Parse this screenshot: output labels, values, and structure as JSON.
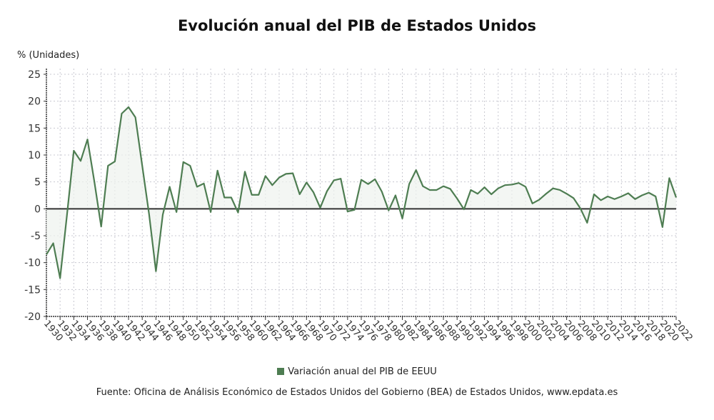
{
  "chart_data": {
    "type": "line",
    "title": "Evolución anual del PIB de Estados Unidos",
    "ylabel": "% (Unidades)",
    "ylim": [
      -20,
      25
    ],
    "yticks": [
      25,
      20,
      15,
      10,
      5,
      0,
      -5,
      -10,
      -15,
      -20
    ],
    "xlim": [
      1930,
      2022
    ],
    "grid": true,
    "legend_position": "bottom",
    "series": [
      {
        "name": "Variación anual del PIB de EEUU",
        "color": "#4e7d52",
        "x": [
          1930,
          1931,
          1932,
          1933,
          1934,
          1935,
          1936,
          1937,
          1938,
          1939,
          1940,
          1941,
          1942,
          1943,
          1944,
          1945,
          1946,
          1947,
          1948,
          1949,
          1950,
          1951,
          1952,
          1953,
          1954,
          1955,
          1956,
          1957,
          1958,
          1959,
          1960,
          1961,
          1962,
          1963,
          1964,
          1965,
          1966,
          1967,
          1968,
          1969,
          1970,
          1971,
          1972,
          1973,
          1974,
          1975,
          1976,
          1977,
          1978,
          1979,
          1980,
          1981,
          1982,
          1983,
          1984,
          1985,
          1986,
          1987,
          1988,
          1989,
          1990,
          1991,
          1992,
          1993,
          1994,
          1995,
          1996,
          1997,
          1998,
          1999,
          2000,
          2001,
          2002,
          2003,
          2004,
          2005,
          2006,
          2007,
          2008,
          2009,
          2010,
          2011,
          2012,
          2013,
          2014,
          2015,
          2016,
          2017,
          2018,
          2019,
          2020,
          2021,
          2022
        ],
        "values": [
          -8.5,
          -6.4,
          -12.9,
          -1.2,
          10.8,
          8.9,
          12.9,
          5.1,
          -3.3,
          8.0,
          8.8,
          17.7,
          18.9,
          17.0,
          8.0,
          -1.0,
          -11.6,
          -1.1,
          4.1,
          -0.6,
          8.7,
          8.0,
          4.1,
          4.7,
          -0.6,
          7.1,
          2.1,
          2.1,
          -0.7,
          6.9,
          2.6,
          2.6,
          6.1,
          4.4,
          5.8,
          6.5,
          6.6,
          2.7,
          4.9,
          3.1,
          0.2,
          3.3,
          5.3,
          5.6,
          -0.5,
          -0.2,
          5.4,
          4.6,
          5.5,
          3.2,
          -0.3,
          2.5,
          -1.8,
          4.6,
          7.2,
          4.2,
          3.5,
          3.5,
          4.2,
          3.7,
          1.9,
          -0.1,
          3.5,
          2.8,
          4.0,
          2.7,
          3.8,
          4.4,
          4.5,
          4.8,
          4.1,
          1.0,
          1.7,
          2.8,
          3.8,
          3.5,
          2.8,
          2.0,
          0.1,
          -2.6,
          2.7,
          1.6,
          2.3,
          1.8,
          2.3,
          2.9,
          1.8,
          2.5,
          3.0,
          2.3,
          -3.4,
          5.7,
          2.1
        ]
      }
    ],
    "xtick_labels": [
      "1930",
      "1932",
      "1934",
      "1936",
      "1938",
      "1940",
      "1942",
      "1944",
      "1946",
      "1948",
      "1950",
      "1952",
      "1954",
      "1956",
      "1958",
      "1960",
      "1962",
      "1964",
      "1966",
      "1968",
      "1970",
      "1972",
      "1974",
      "1976",
      "1978",
      "1980",
      "1982",
      "1984",
      "1986",
      "1988",
      "1990",
      "1992",
      "1994",
      "1996",
      "1998",
      "2000",
      "2002",
      "2004",
      "2006",
      "2008",
      "2010",
      "2012",
      "2014",
      "2016",
      "2018",
      "2020",
      "2022"
    ],
    "source": "Fuente: Oficina de Análisis Económico de Estados Unidos del Gobierno (BEA) de Estados Unidos, www.epdata.es"
  }
}
